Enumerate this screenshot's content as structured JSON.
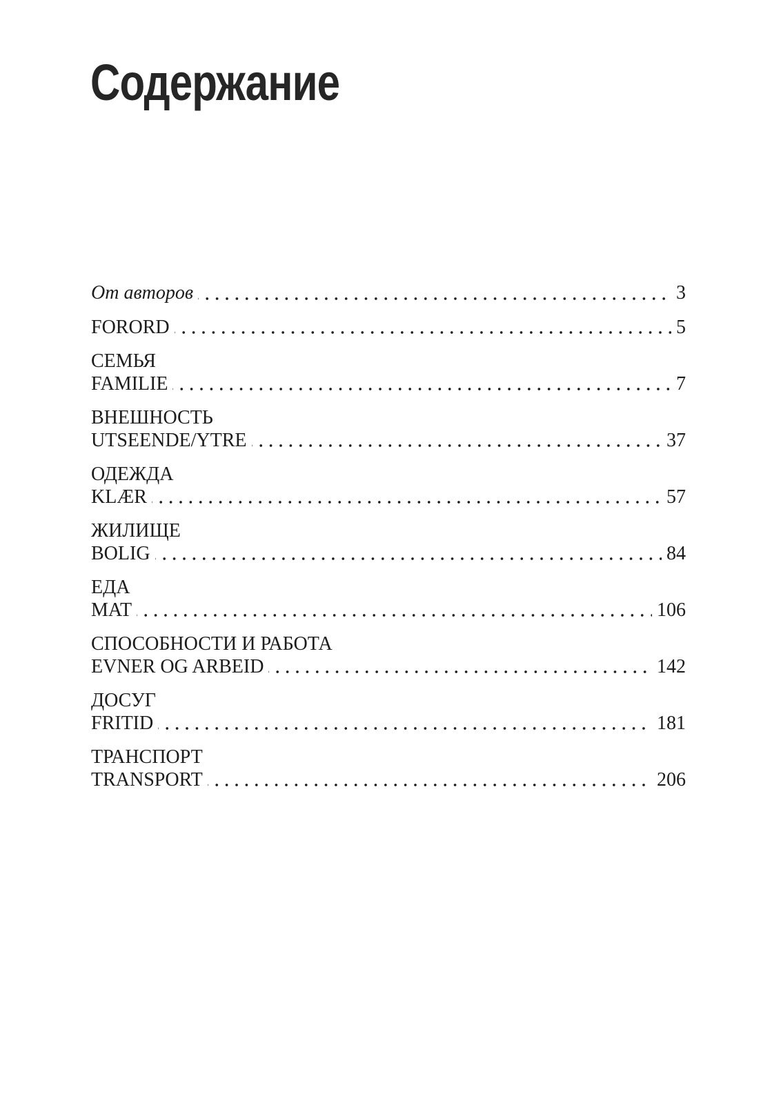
{
  "title": "Содержание",
  "colors": {
    "background": "#ffffff",
    "title_text": "#262626",
    "body_text": "#1c1c1c",
    "dot_leader": "#1c1c1c"
  },
  "toc": {
    "entries": [
      {
        "label": "От авторов",
        "page": "3",
        "italic": true
      },
      {
        "label": "FORORD",
        "page": "5"
      },
      {
        "heading": "СЕМЬЯ",
        "label": "FAMILIE",
        "page": "7"
      },
      {
        "heading": "ВНЕШНОСТЬ",
        "label": "UTSEENDE/YTRE",
        "page": "37"
      },
      {
        "heading": "ОДЕЖДА",
        "label": "KLÆR",
        "page": "57"
      },
      {
        "heading": "ЖИЛИЩЕ",
        "label": "BOLIG",
        "page": "84"
      },
      {
        "heading": "ЕДА",
        "label": "MAT",
        "page": "106"
      },
      {
        "heading": "СПОСОБНОСТИ И РАБОТА",
        "label": "EVNER OG ARBEID",
        "page": "142"
      },
      {
        "heading": "ДОСУГ",
        "label": "FRITID",
        "page": "181"
      },
      {
        "heading": "ТРАНСПОРТ",
        "label": "TRANSPORT",
        "page": "206"
      }
    ]
  }
}
